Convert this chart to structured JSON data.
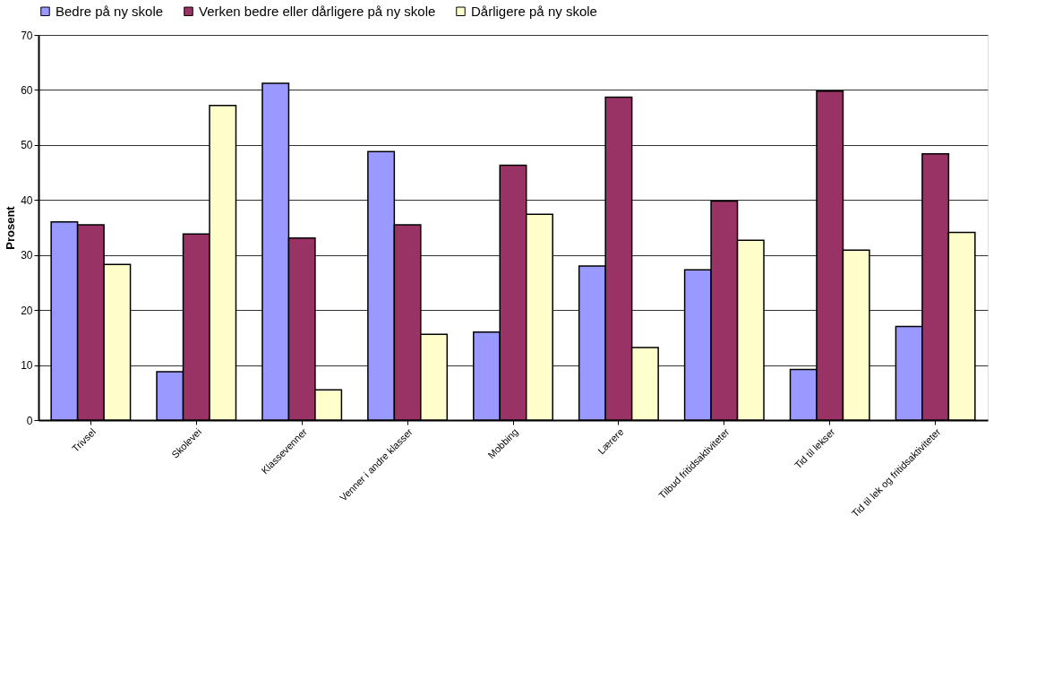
{
  "chart_data": {
    "type": "bar",
    "ylabel": "Prosent",
    "categories": [
      "Trivsel",
      "Skolevei",
      "Klassevenner",
      "Venner i andre klasser",
      "Mobbing",
      "Lærere",
      "Tilbud fritidsaktiviteter",
      "Tid til lekser",
      "Tid til lek og fritidsaktiviteter"
    ],
    "series": [
      {
        "name": "Bedre på ny skole",
        "color": "#9999ff",
        "values": [
          36,
          8.8,
          61.2,
          48.8,
          16,
          28,
          27.3,
          9.2,
          17
        ]
      },
      {
        "name": "Verken bedre eller dårligere på ny skole",
        "color": "#993366",
        "values": [
          35.5,
          33.8,
          33.1,
          35.5,
          46.3,
          58.7,
          39.8,
          59.8,
          48.4
        ]
      },
      {
        "name": "Dårligere på ny skole",
        "color": "#ffffcc",
        "values": [
          28.3,
          57.2,
          5.5,
          15.6,
          37.4,
          13.2,
          32.7,
          30.9,
          34.1
        ]
      }
    ],
    "ylim": [
      0,
      70
    ],
    "yticks": [
      0,
      10,
      20,
      30,
      40,
      50,
      60,
      70
    ],
    "grid": "y",
    "legend": "top"
  }
}
